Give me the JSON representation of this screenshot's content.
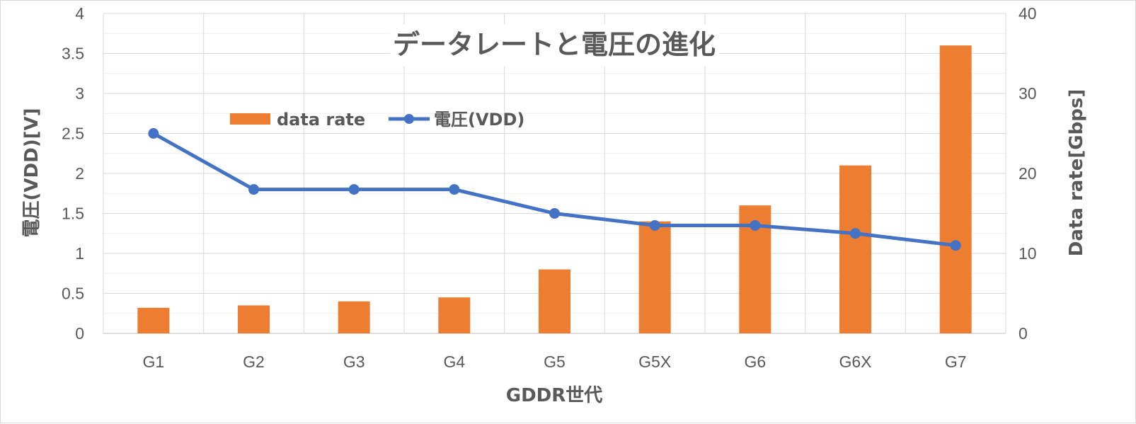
{
  "chart_data": {
    "type": "bar+line",
    "title": "データレートと電圧の進化",
    "xlabel": "GDDR世代",
    "ylabel_left": "電圧(VDD)[V]",
    "ylabel_right": "Data rate[Gbps]",
    "categories": [
      "G1",
      "G2",
      "G3",
      "G4",
      "G5",
      "G5X",
      "G6",
      "G6X",
      "G7"
    ],
    "ylim_left": [
      0,
      4
    ],
    "yticks_left": [
      "0",
      "0.5",
      "1",
      "1.5",
      "2",
      "2.5",
      "3",
      "3.5",
      "4"
    ],
    "ylim_right": [
      0,
      40
    ],
    "yticks_right": [
      "0",
      "10",
      "20",
      "30",
      "40"
    ],
    "grid": true,
    "legend_position": "top-left",
    "series": [
      {
        "name": "data rate",
        "type": "bar",
        "axis": "right",
        "color": "#ED7D31",
        "values": [
          3.2,
          3.5,
          4,
          4.5,
          8,
          14,
          16,
          21,
          36
        ]
      },
      {
        "name": "電圧(VDD)",
        "type": "line",
        "axis": "left",
        "color": "#4472C4",
        "values": [
          2.5,
          1.8,
          1.8,
          1.8,
          1.5,
          1.35,
          1.35,
          1.25,
          1.1
        ]
      }
    ]
  }
}
